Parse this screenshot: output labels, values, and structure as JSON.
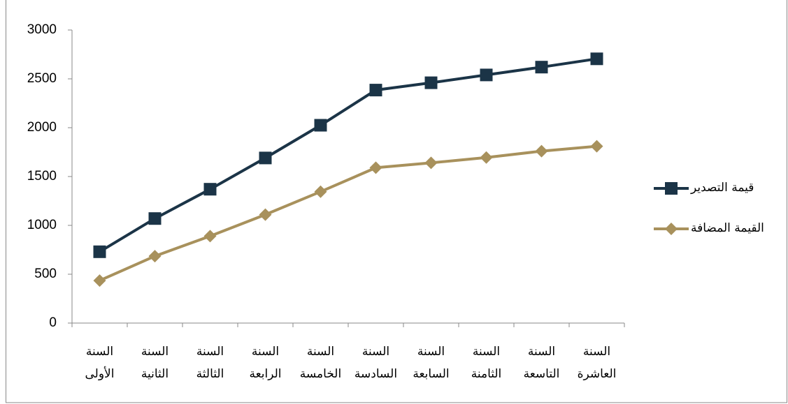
{
  "chart_data": {
    "type": "line",
    "categories": [
      "السنة الأولى",
      "السنة الثانية",
      "السنة الثالثة",
      "السنة الرابعة",
      "السنة الخامسة",
      "السنة السادسة",
      "السنة السابعة",
      "السنة الثامنة",
      "السنة التاسعة",
      "السنة العاشرة"
    ],
    "series": [
      {
        "name": "قيمة التصدير",
        "color": "#1b3447",
        "marker": "square",
        "values": [
          730,
          1070,
          1370,
          1690,
          2025,
          2385,
          2460,
          2540,
          2620,
          2705
        ]
      },
      {
        "name": "القيمة المضافة",
        "color": "#a8915c",
        "marker": "diamond",
        "values": [
          435,
          685,
          890,
          1110,
          1345,
          1590,
          1640,
          1695,
          1760,
          1810
        ]
      }
    ],
    "ylim": [
      0,
      3000
    ],
    "yticks": [
      0,
      500,
      1000,
      1500,
      2000,
      2500,
      3000
    ],
    "grid": false,
    "legend": "right"
  }
}
